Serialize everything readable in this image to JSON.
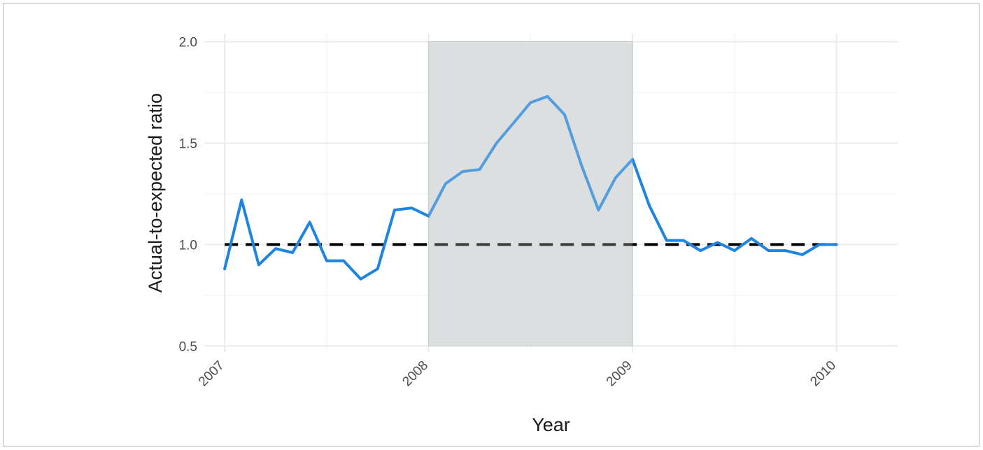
{
  "chart_data": {
    "type": "line",
    "title": "",
    "xlabel": "Year",
    "ylabel": "Actual-to-expected ratio",
    "xlim": [
      2006.9,
      2010.3
    ],
    "ylim": [
      0.47,
      2.04
    ],
    "x_ticks": [
      "2007",
      "2008",
      "2009",
      "2010"
    ],
    "y_ticks": [
      "0.5",
      "1.0",
      "1.5",
      "2.0"
    ],
    "grid": true,
    "shaded_region": {
      "x_start": 2008,
      "x_end": 2009,
      "y_start": 0.5,
      "y_end": 2.0,
      "color": "#dcdfe0"
    },
    "reference_line": {
      "y": 1.0,
      "style": "dashed",
      "color": "#000000"
    },
    "series": [
      {
        "color": "#1f84df",
        "x": [
          2007.0,
          2007.083,
          2007.167,
          2007.25,
          2007.333,
          2007.417,
          2007.5,
          2007.583,
          2007.667,
          2007.75,
          2007.833,
          2007.917,
          2008.0,
          2008.083,
          2008.167,
          2008.25,
          2008.333,
          2008.417,
          2008.5,
          2008.583,
          2008.667,
          2008.75,
          2008.833,
          2008.917,
          2009.0,
          2009.083,
          2009.167,
          2009.25,
          2009.333,
          2009.417,
          2009.5,
          2009.583,
          2009.667,
          2009.75,
          2009.833,
          2009.917,
          2010.0
        ],
        "values": [
          0.88,
          1.22,
          0.9,
          0.98,
          0.96,
          1.11,
          0.92,
          0.92,
          0.83,
          0.88,
          1.17,
          1.18,
          1.14,
          1.3,
          1.36,
          1.37,
          1.5,
          1.6,
          1.7,
          1.73,
          1.64,
          1.39,
          1.17,
          1.33,
          1.42,
          1.19,
          1.02,
          1.02,
          0.97,
          1.01,
          0.97,
          1.03,
          0.97,
          0.97,
          0.95,
          1.0,
          1.0
        ]
      }
    ]
  }
}
